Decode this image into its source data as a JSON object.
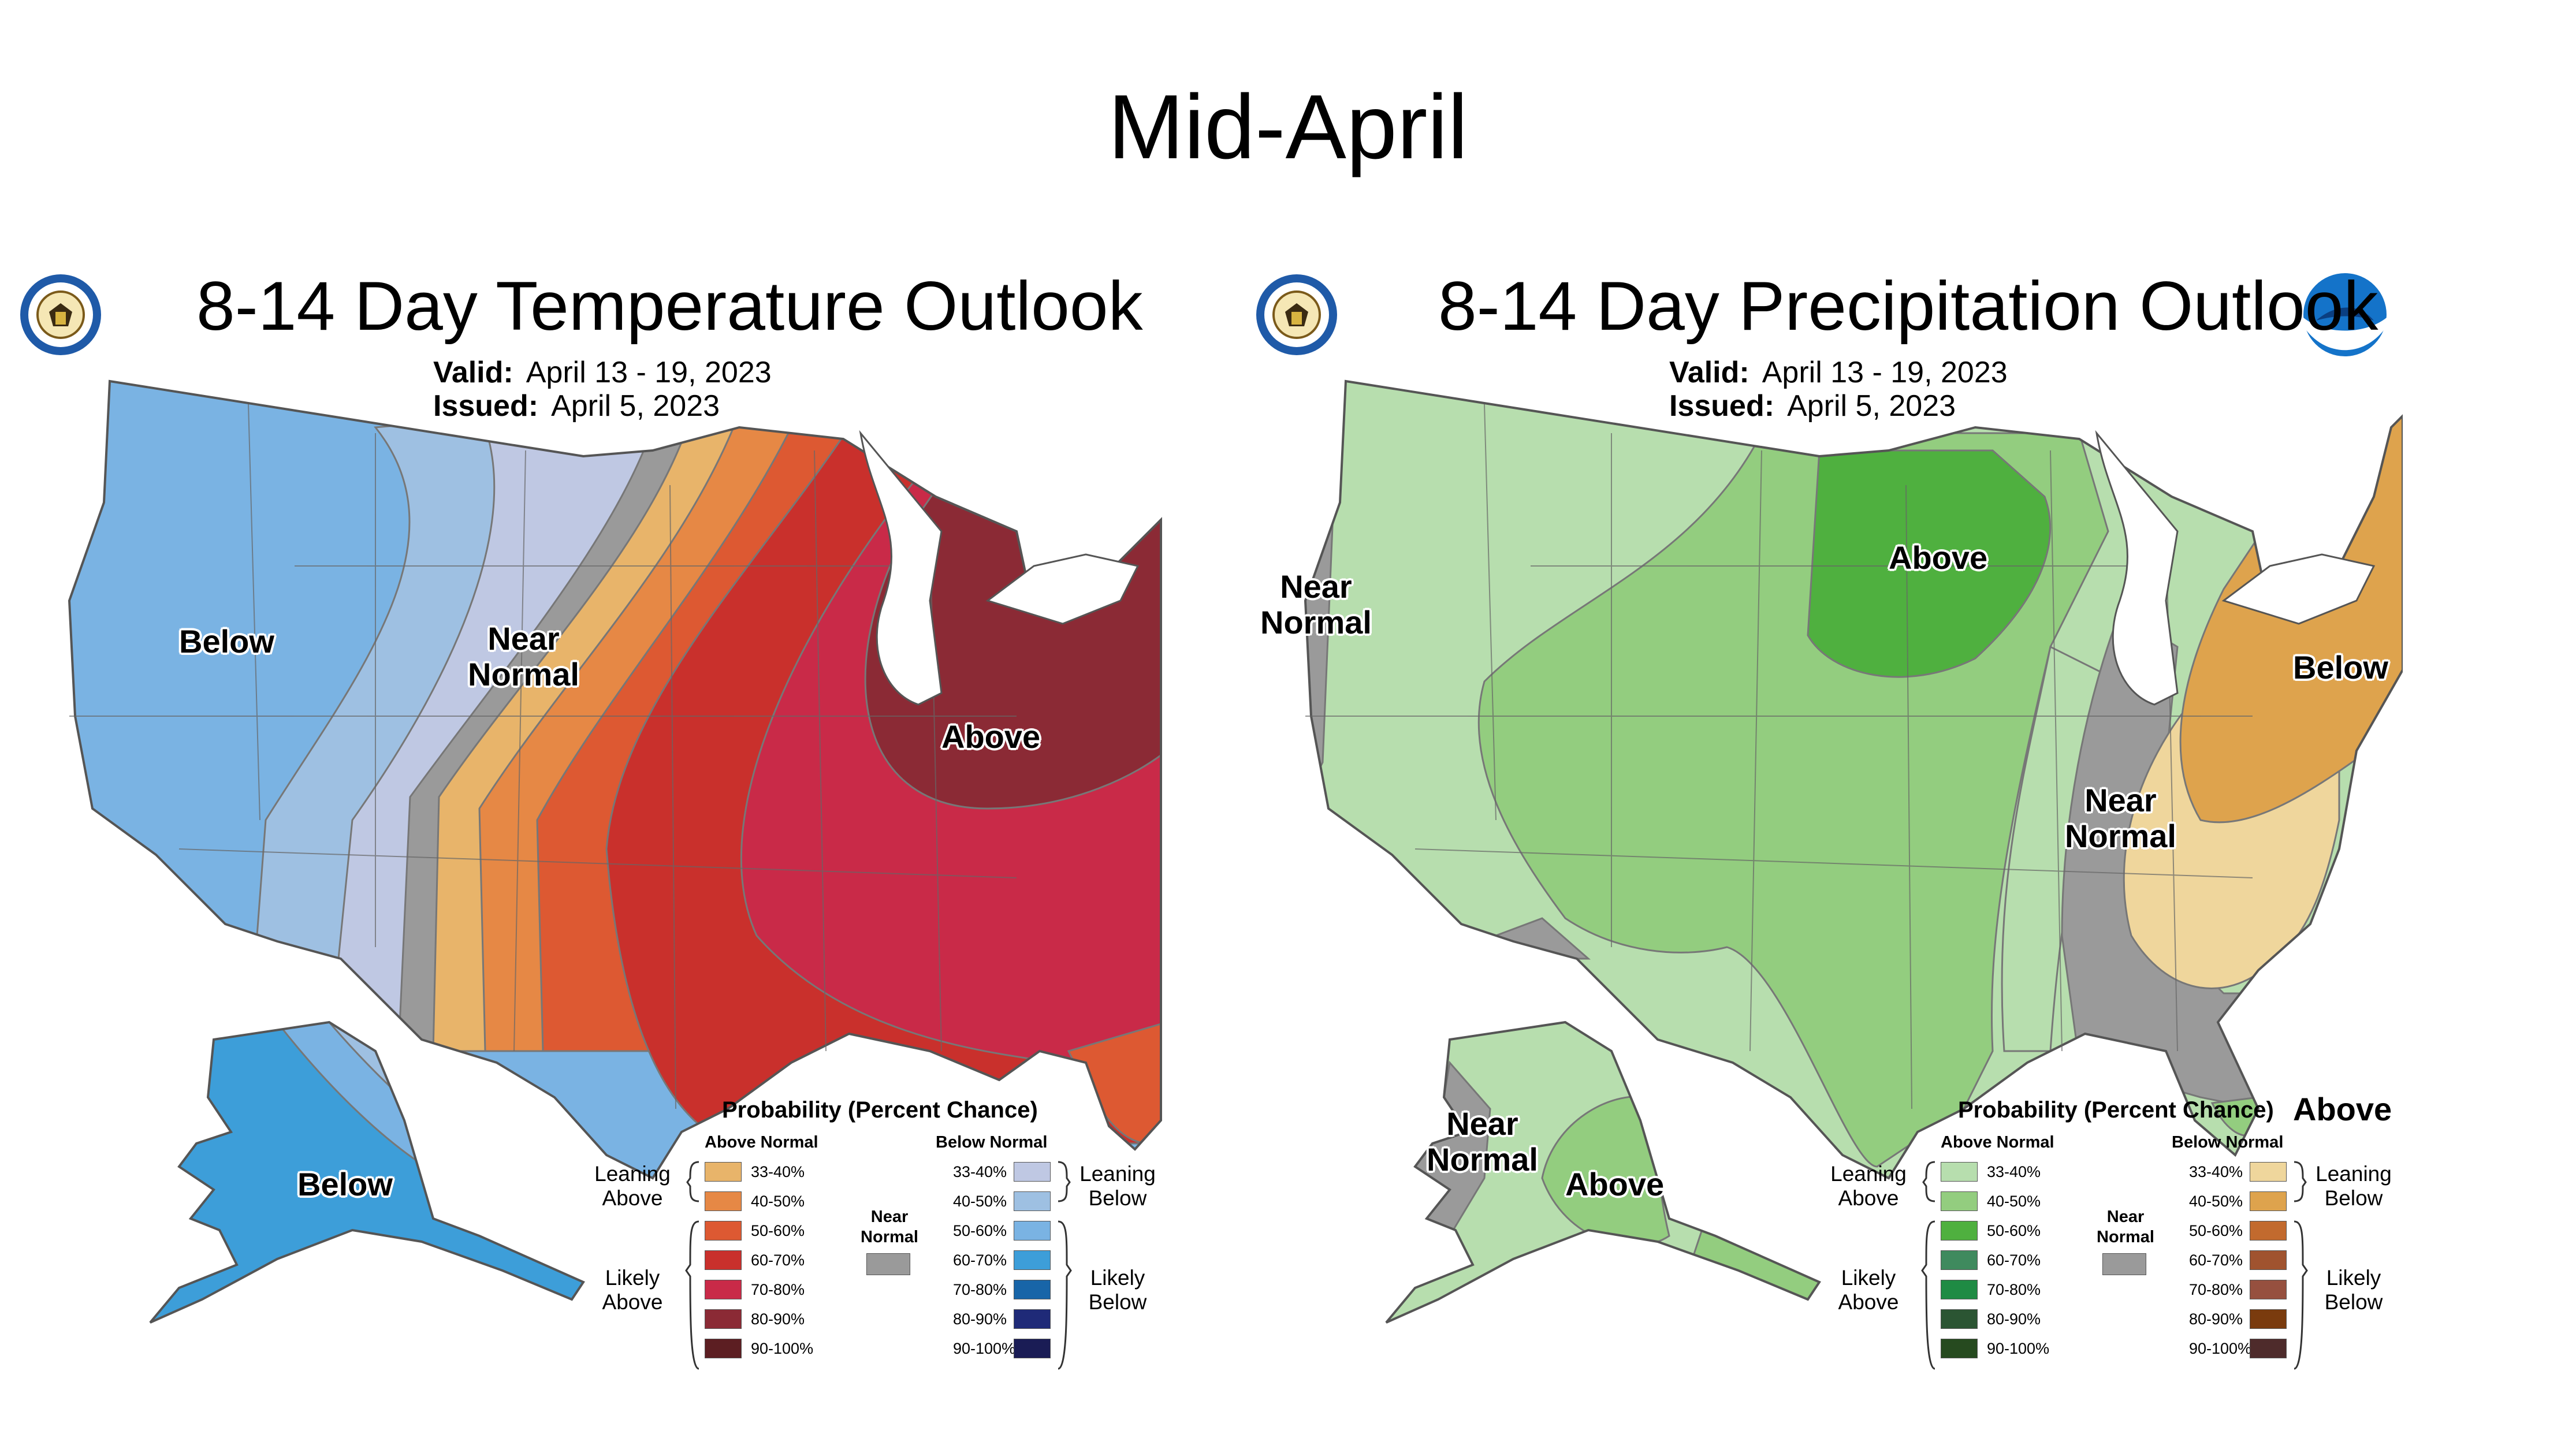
{
  "slide_title": "Mid-April",
  "valid_label": "Valid:",
  "issued_label": "Issued:",
  "temperature": {
    "title": "8-14 Day Temperature Outlook",
    "valid": "April 13 - 19, 2023",
    "issued": "April 5, 2023",
    "map_labels": {
      "below": "Below",
      "near": "Near\nNormal",
      "above": "Above",
      "alaska": "Below"
    },
    "legend": {
      "title": "Probability (Percent Chance)",
      "above_header": "Above Normal",
      "below_header": "Below Normal",
      "near_normal": "Near Normal",
      "near_color": "#9a9a9a",
      "leaning_above": "Leaning Above",
      "likely_above": "Likely Above",
      "leaning_below": "Leaning Below",
      "likely_below": "Likely Below",
      "above_items": [
        {
          "label": "33-40%",
          "color": "#e8b46a"
        },
        {
          "label": "40-50%",
          "color": "#e68845"
        },
        {
          "label": "50-60%",
          "color": "#dd5932"
        },
        {
          "label": "60-70%",
          "color": "#c9302c"
        },
        {
          "label": "70-80%",
          "color": "#c92a48"
        },
        {
          "label": "80-90%",
          "color": "#8b2a35"
        },
        {
          "label": "90-100%",
          "color": "#5c1e22"
        }
      ],
      "below_items": [
        {
          "label": "33-40%",
          "color": "#bfc8e3"
        },
        {
          "label": "40-50%",
          "color": "#9ec0e2"
        },
        {
          "label": "50-60%",
          "color": "#7ab3e3"
        },
        {
          "label": "60-70%",
          "color": "#3d9ed9"
        },
        {
          "label": "70-80%",
          "color": "#1865a8"
        },
        {
          "label": "80-90%",
          "color": "#1f2a78"
        },
        {
          "label": "90-100%",
          "color": "#1a1c55"
        }
      ]
    }
  },
  "precipitation": {
    "title": "8-14 Day Precipitation Outlook",
    "valid": "April 13 - 19, 2023",
    "issued": "April 5, 2023",
    "map_labels": {
      "near_west": "Near\nNormal",
      "above": "Above",
      "near_southeast": "Near\nNormal",
      "below": "Below",
      "above_florida": "Above",
      "alaska_near": "Near\nNormal",
      "alaska_above": "Above"
    },
    "legend": {
      "title": "Probability (Percent Chance)",
      "above_header": "Above Normal",
      "below_header": "Below Normal",
      "near_normal": "Near Normal",
      "near_color": "#9a9a9a",
      "leaning_above": "Leaning Above",
      "likely_above": "Likely Above",
      "leaning_below": "Leaning Below",
      "likely_below": "Likely Below",
      "above_items": [
        {
          "label": "33-40%",
          "color": "#b7deae"
        },
        {
          "label": "40-50%",
          "color": "#93cd7f"
        },
        {
          "label": "50-60%",
          "color": "#4fb03f"
        },
        {
          "label": "60-70%",
          "color": "#3f8a5e"
        },
        {
          "label": "70-80%",
          "color": "#1f8b44"
        },
        {
          "label": "80-90%",
          "color": "#2b5533"
        },
        {
          "label": "90-100%",
          "color": "#264a1f"
        }
      ],
      "below_items": [
        {
          "label": "33-40%",
          "color": "#efd69c"
        },
        {
          "label": "40-50%",
          "color": "#dea34d"
        },
        {
          "label": "50-60%",
          "color": "#c26a2e"
        },
        {
          "label": "60-70%",
          "color": "#a0532f"
        },
        {
          "label": "70-80%",
          "color": "#96503f"
        },
        {
          "label": "80-90%",
          "color": "#7a3b0e"
        },
        {
          "label": "90-100%",
          "color": "#4e2b2b"
        }
      ]
    }
  }
}
